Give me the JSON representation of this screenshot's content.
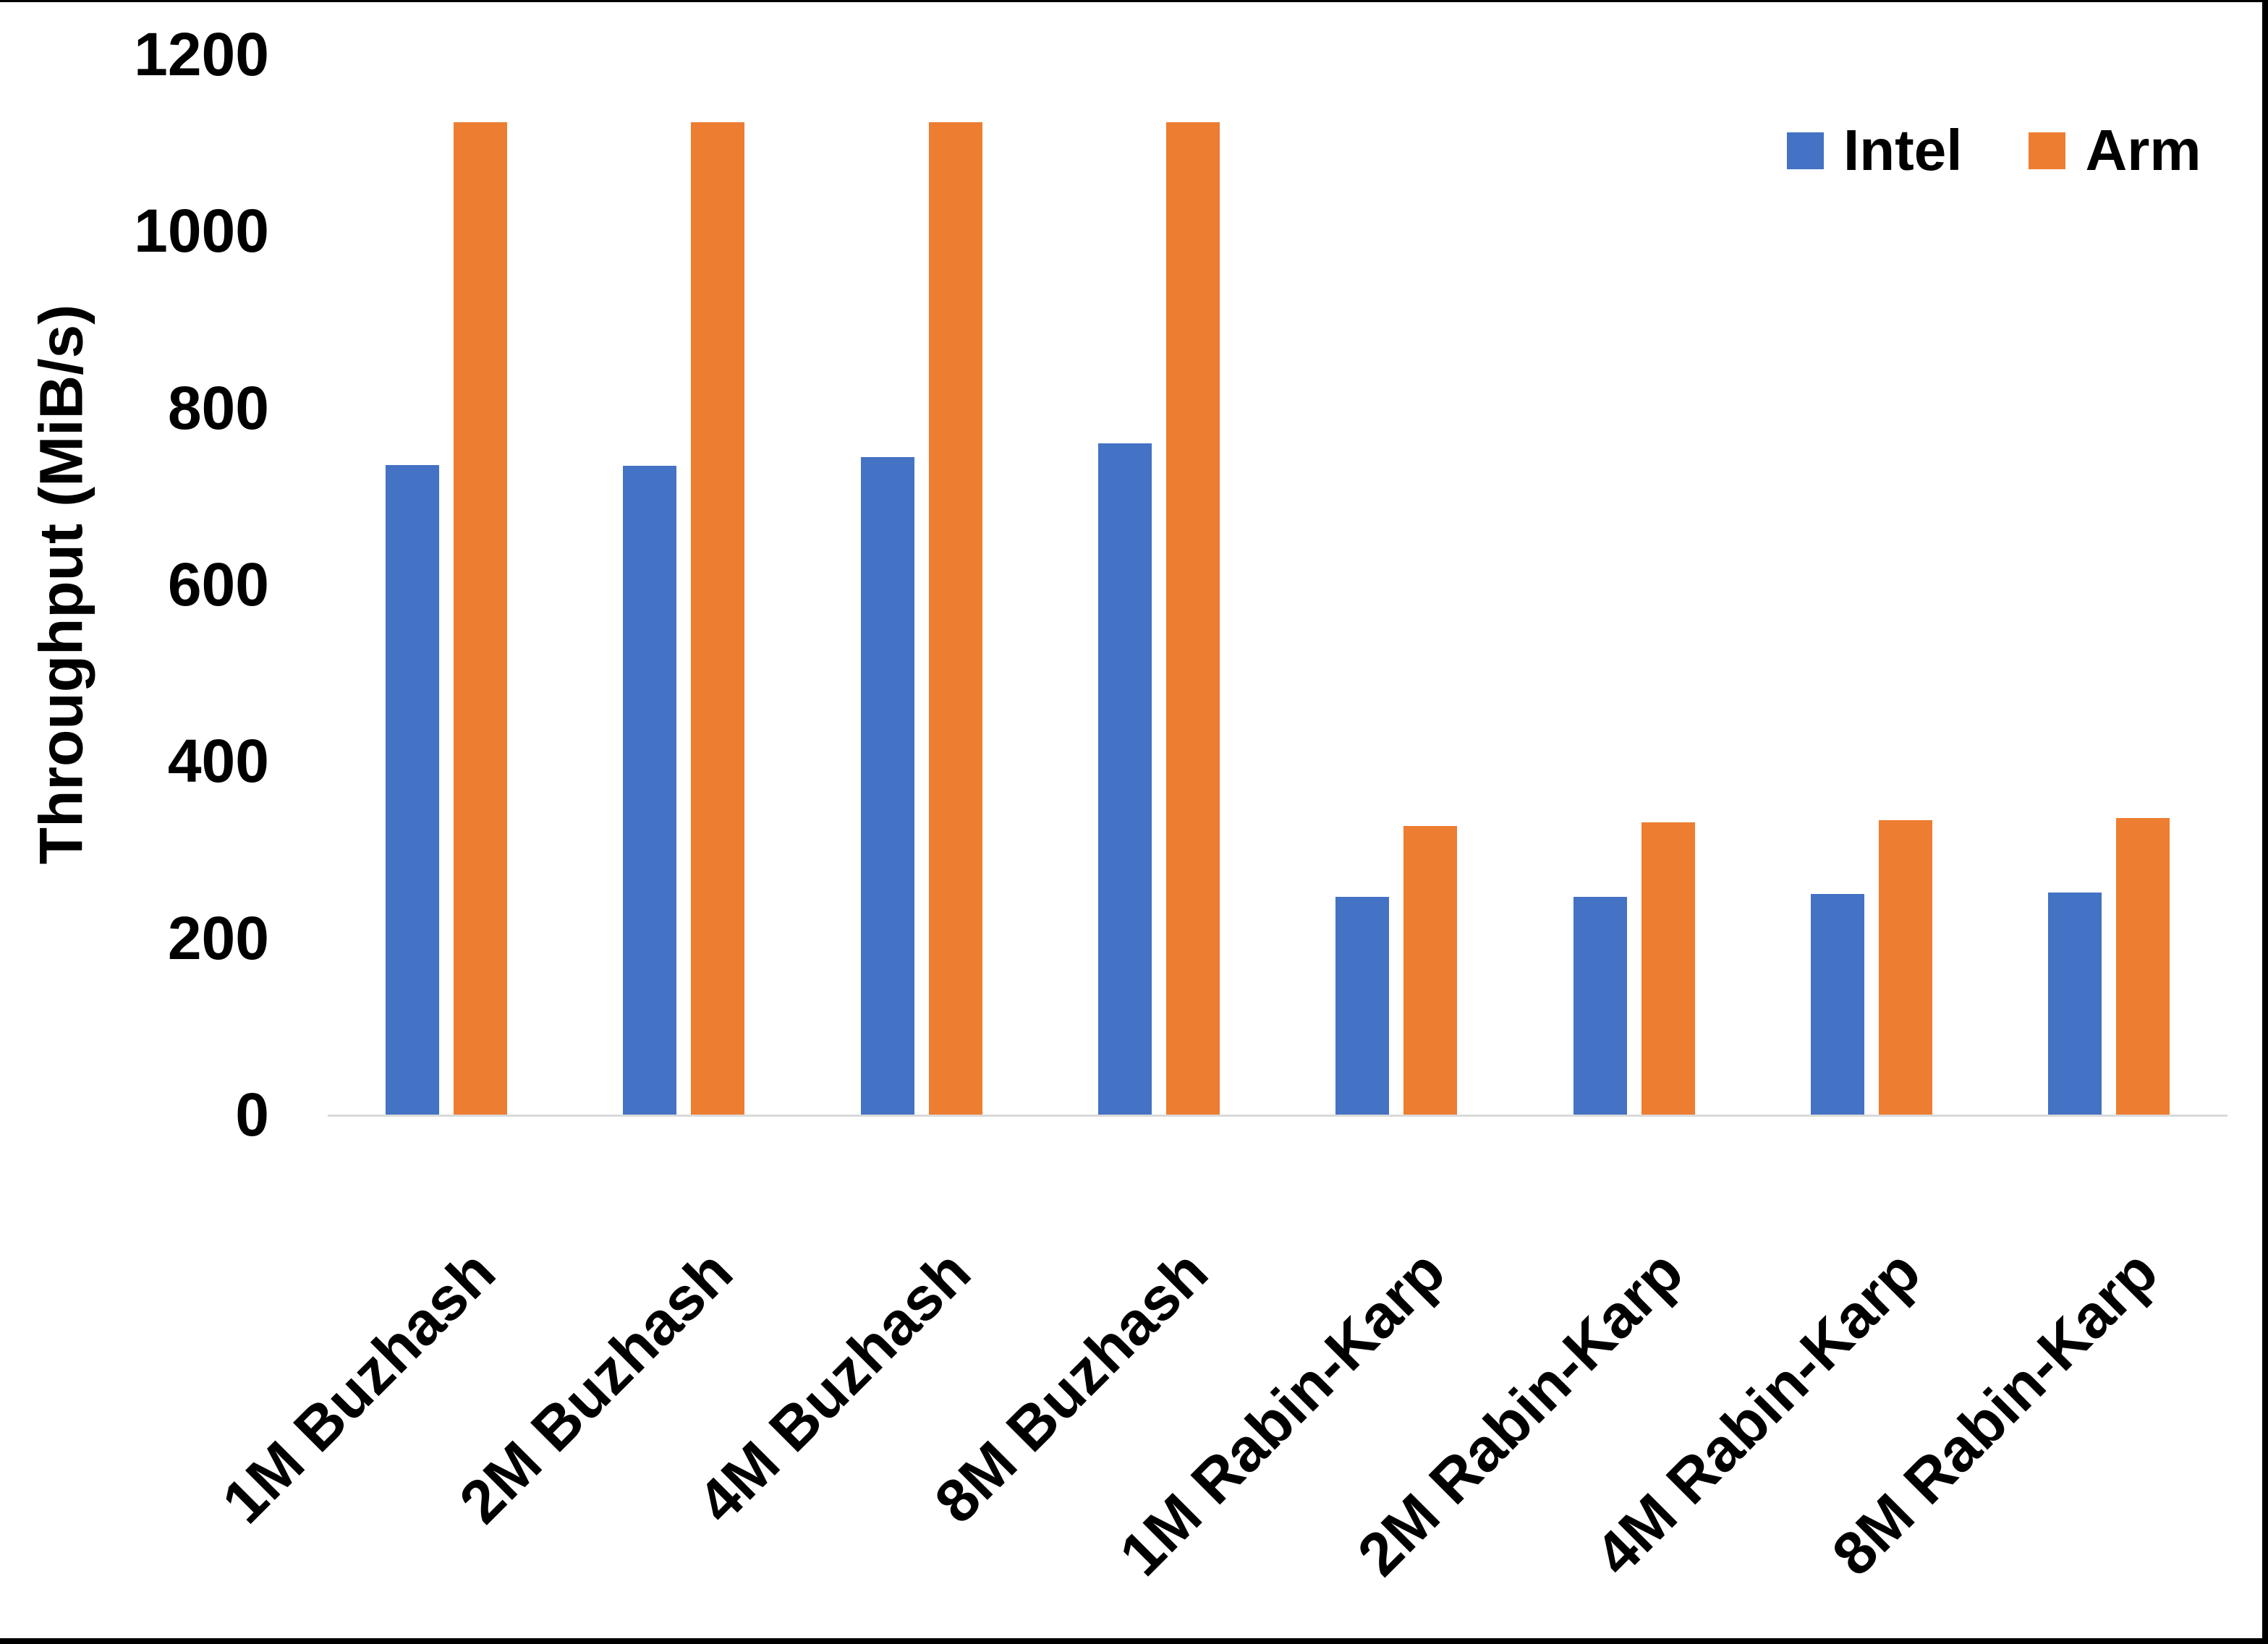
{
  "chart_data": {
    "type": "bar",
    "title": "",
    "xlabel": "",
    "ylabel": "Throughput (MiB/s)",
    "categories": [
      "1M Buzhash",
      "2M Buzhash",
      "4M Buzhash",
      "8M Buzhash",
      "1M Rabin-Karp",
      "2M Rabin-Karp",
      "4M Rabin-Karp",
      "8M Rabin-Karp"
    ],
    "series": [
      {
        "name": "Intel",
        "color": "#4472C4",
        "values": [
          735,
          734,
          744,
          760,
          246,
          246,
          250,
          251
        ]
      },
      {
        "name": "Arm",
        "color": "#ED7D31",
        "values": [
          1123,
          1123,
          1123,
          1123,
          327,
          331,
          333,
          336
        ]
      }
    ],
    "ylim": [
      0,
      1200
    ],
    "yticks": [
      0,
      200,
      400,
      600,
      800,
      1000,
      1200
    ],
    "legend_position": "top-right",
    "grid": false,
    "axis_line_color": "#d9d9d9",
    "text_color": "#000000"
  }
}
